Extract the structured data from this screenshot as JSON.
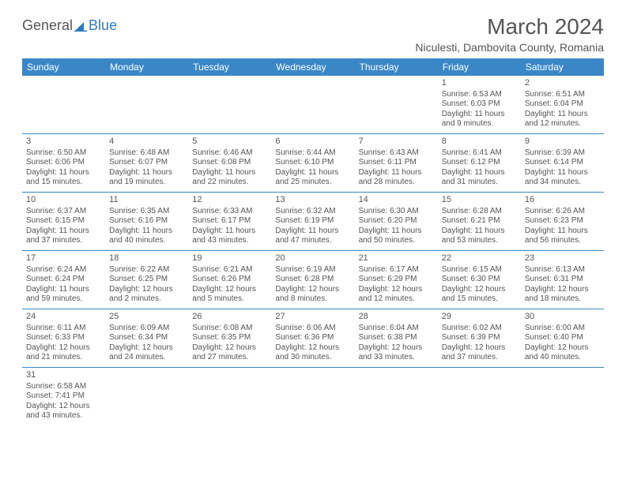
{
  "logo": {
    "text_a": "General",
    "text_b": "Blue"
  },
  "title": "March 2024",
  "location": "Niculesti, Dambovita County, Romania",
  "header_color": "#3a87c8",
  "divider_color": "#3a87c8",
  "background_color": "#ffffff",
  "text_color": "#555555",
  "day_headers": [
    "Sunday",
    "Monday",
    "Tuesday",
    "Wednesday",
    "Thursday",
    "Friday",
    "Saturday"
  ],
  "weeks": [
    [
      null,
      null,
      null,
      null,
      null,
      {
        "n": "1",
        "sr": "Sunrise: 6:53 AM",
        "ss": "Sunset: 6:03 PM",
        "d1": "Daylight: 11 hours",
        "d2": "and 9 minutes."
      },
      {
        "n": "2",
        "sr": "Sunrise: 6:51 AM",
        "ss": "Sunset: 6:04 PM",
        "d1": "Daylight: 11 hours",
        "d2": "and 12 minutes."
      }
    ],
    [
      {
        "n": "3",
        "sr": "Sunrise: 6:50 AM",
        "ss": "Sunset: 6:06 PM",
        "d1": "Daylight: 11 hours",
        "d2": "and 15 minutes."
      },
      {
        "n": "4",
        "sr": "Sunrise: 6:48 AM",
        "ss": "Sunset: 6:07 PM",
        "d1": "Daylight: 11 hours",
        "d2": "and 19 minutes."
      },
      {
        "n": "5",
        "sr": "Sunrise: 6:46 AM",
        "ss": "Sunset: 6:08 PM",
        "d1": "Daylight: 11 hours",
        "d2": "and 22 minutes."
      },
      {
        "n": "6",
        "sr": "Sunrise: 6:44 AM",
        "ss": "Sunset: 6:10 PM",
        "d1": "Daylight: 11 hours",
        "d2": "and 25 minutes."
      },
      {
        "n": "7",
        "sr": "Sunrise: 6:43 AM",
        "ss": "Sunset: 6:11 PM",
        "d1": "Daylight: 11 hours",
        "d2": "and 28 minutes."
      },
      {
        "n": "8",
        "sr": "Sunrise: 6:41 AM",
        "ss": "Sunset: 6:12 PM",
        "d1": "Daylight: 11 hours",
        "d2": "and 31 minutes."
      },
      {
        "n": "9",
        "sr": "Sunrise: 6:39 AM",
        "ss": "Sunset: 6:14 PM",
        "d1": "Daylight: 11 hours",
        "d2": "and 34 minutes."
      }
    ],
    [
      {
        "n": "10",
        "sr": "Sunrise: 6:37 AM",
        "ss": "Sunset: 6:15 PM",
        "d1": "Daylight: 11 hours",
        "d2": "and 37 minutes."
      },
      {
        "n": "11",
        "sr": "Sunrise: 6:35 AM",
        "ss": "Sunset: 6:16 PM",
        "d1": "Daylight: 11 hours",
        "d2": "and 40 minutes."
      },
      {
        "n": "12",
        "sr": "Sunrise: 6:33 AM",
        "ss": "Sunset: 6:17 PM",
        "d1": "Daylight: 11 hours",
        "d2": "and 43 minutes."
      },
      {
        "n": "13",
        "sr": "Sunrise: 6:32 AM",
        "ss": "Sunset: 6:19 PM",
        "d1": "Daylight: 11 hours",
        "d2": "and 47 minutes."
      },
      {
        "n": "14",
        "sr": "Sunrise: 6:30 AM",
        "ss": "Sunset: 6:20 PM",
        "d1": "Daylight: 11 hours",
        "d2": "and 50 minutes."
      },
      {
        "n": "15",
        "sr": "Sunrise: 6:28 AM",
        "ss": "Sunset: 6:21 PM",
        "d1": "Daylight: 11 hours",
        "d2": "and 53 minutes."
      },
      {
        "n": "16",
        "sr": "Sunrise: 6:26 AM",
        "ss": "Sunset: 6:23 PM",
        "d1": "Daylight: 11 hours",
        "d2": "and 56 minutes."
      }
    ],
    [
      {
        "n": "17",
        "sr": "Sunrise: 6:24 AM",
        "ss": "Sunset: 6:24 PM",
        "d1": "Daylight: 11 hours",
        "d2": "and 59 minutes."
      },
      {
        "n": "18",
        "sr": "Sunrise: 6:22 AM",
        "ss": "Sunset: 6:25 PM",
        "d1": "Daylight: 12 hours",
        "d2": "and 2 minutes."
      },
      {
        "n": "19",
        "sr": "Sunrise: 6:21 AM",
        "ss": "Sunset: 6:26 PM",
        "d1": "Daylight: 12 hours",
        "d2": "and 5 minutes."
      },
      {
        "n": "20",
        "sr": "Sunrise: 6:19 AM",
        "ss": "Sunset: 6:28 PM",
        "d1": "Daylight: 12 hours",
        "d2": "and 8 minutes."
      },
      {
        "n": "21",
        "sr": "Sunrise: 6:17 AM",
        "ss": "Sunset: 6:29 PM",
        "d1": "Daylight: 12 hours",
        "d2": "and 12 minutes."
      },
      {
        "n": "22",
        "sr": "Sunrise: 6:15 AM",
        "ss": "Sunset: 6:30 PM",
        "d1": "Daylight: 12 hours",
        "d2": "and 15 minutes."
      },
      {
        "n": "23",
        "sr": "Sunrise: 6:13 AM",
        "ss": "Sunset: 6:31 PM",
        "d1": "Daylight: 12 hours",
        "d2": "and 18 minutes."
      }
    ],
    [
      {
        "n": "24",
        "sr": "Sunrise: 6:11 AM",
        "ss": "Sunset: 6:33 PM",
        "d1": "Daylight: 12 hours",
        "d2": "and 21 minutes."
      },
      {
        "n": "25",
        "sr": "Sunrise: 6:09 AM",
        "ss": "Sunset: 6:34 PM",
        "d1": "Daylight: 12 hours",
        "d2": "and 24 minutes."
      },
      {
        "n": "26",
        "sr": "Sunrise: 6:08 AM",
        "ss": "Sunset: 6:35 PM",
        "d1": "Daylight: 12 hours",
        "d2": "and 27 minutes."
      },
      {
        "n": "27",
        "sr": "Sunrise: 6:06 AM",
        "ss": "Sunset: 6:36 PM",
        "d1": "Daylight: 12 hours",
        "d2": "and 30 minutes."
      },
      {
        "n": "28",
        "sr": "Sunrise: 6:04 AM",
        "ss": "Sunset: 6:38 PM",
        "d1": "Daylight: 12 hours",
        "d2": "and 33 minutes."
      },
      {
        "n": "29",
        "sr": "Sunrise: 6:02 AM",
        "ss": "Sunset: 6:39 PM",
        "d1": "Daylight: 12 hours",
        "d2": "and 37 minutes."
      },
      {
        "n": "30",
        "sr": "Sunrise: 6:00 AM",
        "ss": "Sunset: 6:40 PM",
        "d1": "Daylight: 12 hours",
        "d2": "and 40 minutes."
      }
    ],
    [
      {
        "n": "31",
        "sr": "Sunrise: 6:58 AM",
        "ss": "Sunset: 7:41 PM",
        "d1": "Daylight: 12 hours",
        "d2": "and 43 minutes."
      },
      null,
      null,
      null,
      null,
      null,
      null
    ]
  ]
}
